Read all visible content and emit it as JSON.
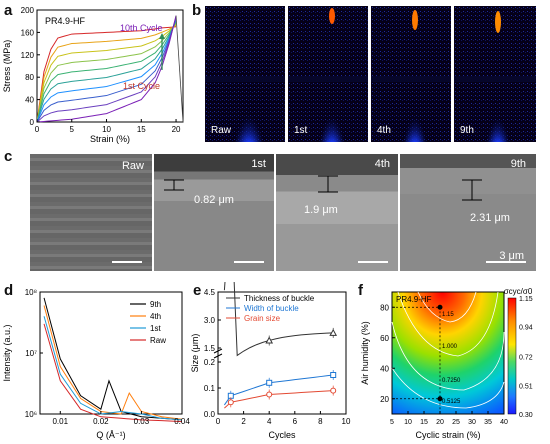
{
  "panel_labels": {
    "a": "a",
    "b": "b",
    "c": "c",
    "d": "d",
    "e": "e",
    "f": "f"
  },
  "a": {
    "sample": "PR4.9-HF",
    "cycle_10": "10th Cycle",
    "cycle_1": "1st Cycle",
    "xlabel": "Strain (%)",
    "ylabel": "Stress (MPa)",
    "xticks": [
      "0",
      "5",
      "10",
      "15",
      "20"
    ],
    "yticks": [
      "0",
      "40",
      "80",
      "120",
      "160",
      "200"
    ]
  },
  "b": {
    "labels": [
      "Raw",
      "1st",
      "4th",
      "9th"
    ]
  },
  "c": {
    "labels": [
      "Raw",
      "1st",
      "4th",
      "9th"
    ],
    "measure_1": "0.82 μm",
    "measure_4": "1.9 μm",
    "measure_9": "2.31 μm",
    "scale": "3 μm"
  },
  "d": {
    "xlabel": "Q (Å⁻¹)",
    "ylabel": "Intensity (a.u.)",
    "xticks": [
      "0.01",
      "0.02",
      "0.03",
      "0.04"
    ],
    "yticks": [
      "10⁶",
      "10⁷",
      "10⁸"
    ],
    "legend": [
      "9th",
      "4th",
      "1st",
      "Raw"
    ]
  },
  "e": {
    "xlabel": "Cycles",
    "ylabel": "Size (μm)",
    "xticks": [
      "0",
      "2",
      "4",
      "6",
      "8",
      "10"
    ],
    "yticks_top": [
      "1.5",
      "3.0",
      "4.5"
    ],
    "yticks_bottom": [
      "0.0",
      "0.1",
      "0.2"
    ],
    "legend": [
      "Thickness of buckle",
      "Width of buckle",
      "Grain size"
    ]
  },
  "f": {
    "sample": "PR4.9-HF",
    "xlabel": "Cyclic strain (%)",
    "ylabel": "Air humidity (%)",
    "xticks": [
      "5",
      "10",
      "15",
      "20",
      "25",
      "30",
      "35",
      "40"
    ],
    "yticks": [
      "20",
      "40",
      "60",
      "80"
    ],
    "colorbar_title": "σcyc/σ0",
    "colorbar_ticks": [
      "1.15",
      "0.94",
      "0.72",
      "0.51",
      "0.30"
    ],
    "contours": [
      "1.15",
      "1.000",
      "0.7250",
      "0.5125"
    ]
  },
  "chart_data": [
    {
      "type": "line",
      "title": "",
      "xlabel": "Strain (%)",
      "ylabel": "Stress (MPa)",
      "xlim": [
        0,
        21
      ],
      "ylim": [
        0,
        200
      ],
      "series": [
        {
          "name": "1st Cycle",
          "x": [
            0,
            1,
            2,
            3,
            5,
            10,
            15,
            18,
            20
          ],
          "y": [
            0,
            90,
            130,
            150,
            157,
            160,
            163,
            168,
            170
          ]
        },
        {
          "name": "10th Cycle",
          "x": [
            0,
            5,
            10,
            15,
            17,
            18,
            19,
            20
          ],
          "y": [
            0,
            5,
            15,
            40,
            70,
            100,
            140,
            190
          ]
        }
      ]
    },
    {
      "type": "line",
      "xlabel": "Q (Å⁻¹)",
      "ylabel": "Intensity (a.u.)",
      "xlim": [
        0.005,
        0.04
      ],
      "ylim": [
        1000000,
        100000000
      ],
      "series": [
        {
          "name": "9th",
          "x": [
            0.006,
            0.01,
            0.015,
            0.02,
            0.022,
            0.025,
            0.03,
            0.035,
            0.04
          ],
          "y": [
            80000000,
            8000000,
            2000000,
            1200000,
            3500000,
            1100000,
            900000,
            850000,
            800000
          ]
        },
        {
          "name": "4th",
          "x": [
            0.006,
            0.01,
            0.015,
            0.02,
            0.025,
            0.027,
            0.03,
            0.035,
            0.04
          ],
          "y": [
            60000000,
            6000000,
            1800000,
            1100000,
            1000000,
            2200000,
            1100000,
            900000,
            820000
          ]
        },
        {
          "name": "1st",
          "x": [
            0.006,
            0.01,
            0.015,
            0.02,
            0.025,
            0.03,
            0.035,
            0.04
          ],
          "y": [
            40000000,
            4500000,
            1500000,
            1000000,
            1100000,
            1000000,
            850000,
            800000
          ]
        },
        {
          "name": "Raw",
          "x": [
            0.006,
            0.01,
            0.015,
            0.02,
            0.025,
            0.03,
            0.035,
            0.04
          ],
          "y": [
            30000000,
            3500000,
            1200000,
            900000,
            850000,
            800000,
            780000,
            750000
          ]
        }
      ]
    },
    {
      "type": "line",
      "xlabel": "Cycles",
      "ylabel": "Size (μm)",
      "xlim": [
        0,
        10
      ],
      "series": [
        {
          "name": "Thickness of buckle",
          "x": [
            1,
            4,
            9
          ],
          "y": [
            0.82,
            1.9,
            2.31
          ]
        },
        {
          "name": "Width of buckle",
          "x": [
            1,
            4,
            9
          ],
          "y": [
            0.07,
            0.12,
            0.15
          ]
        },
        {
          "name": "Grain size",
          "x": [
            1,
            4,
            9
          ],
          "y": [
            0.045,
            0.075,
            0.09
          ]
        }
      ]
    },
    {
      "type": "heatmap",
      "xlabel": "Cyclic strain (%)",
      "ylabel": "Air humidity (%)",
      "xlim": [
        5,
        40
      ],
      "ylim": [
        10,
        90
      ],
      "colorbar_range": [
        0.3,
        1.15
      ],
      "points": [
        {
          "x": 20,
          "y": 80
        },
        {
          "x": 20,
          "y": 20
        }
      ]
    }
  ]
}
